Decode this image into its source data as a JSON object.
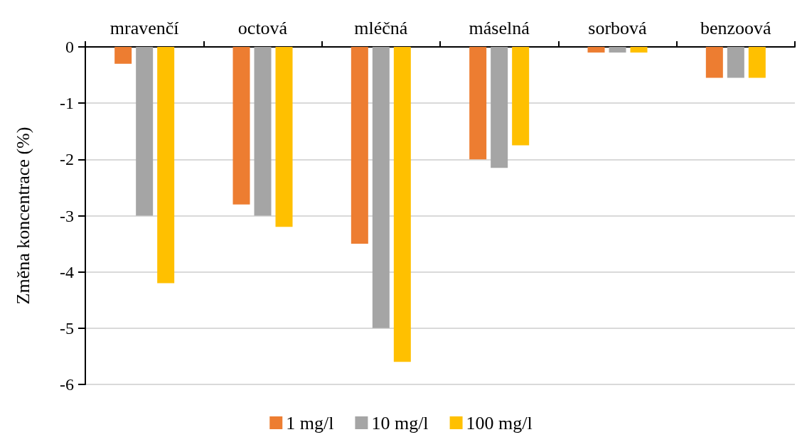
{
  "chart_data": {
    "type": "bar",
    "ylabel": "Změna koncentrace (%)",
    "categories": [
      "mravenčí",
      "octová",
      "mléčná",
      "máselná",
      "sorbová",
      "benzoová"
    ],
    "series": [
      {
        "name": "1 mg/l",
        "color": "#ed7d31",
        "values": [
          -0.3,
          -2.8,
          -3.5,
          -2.0,
          -0.1,
          -0.55
        ]
      },
      {
        "name": "10 mg/l",
        "color": "#a5a5a5",
        "values": [
          -3.0,
          -3.0,
          -5.0,
          -2.15,
          -0.1,
          -0.55
        ]
      },
      {
        "name": "100 mg/l",
        "color": "#ffc000",
        "values": [
          -4.2,
          -3.2,
          -5.6,
          -1.75,
          -0.1,
          -0.55
        ]
      }
    ],
    "ylim": [
      -6,
      0
    ],
    "yticks": [
      -6,
      -5,
      -4,
      -3,
      -2,
      -1,
      0
    ],
    "grid": "y",
    "legend": "bottom"
  }
}
